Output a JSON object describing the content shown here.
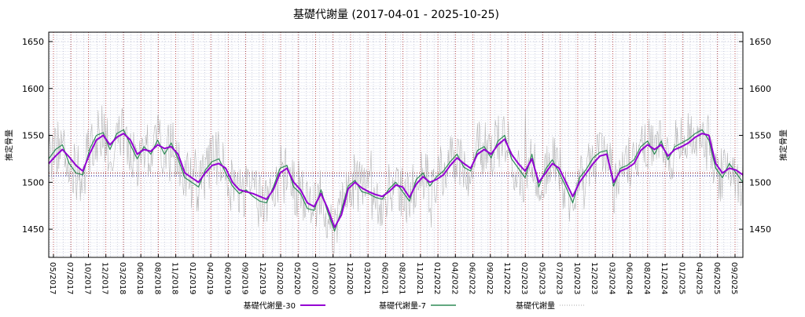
{
  "chart_data": {
    "type": "line",
    "title": "基礎代謝量 (2017-04-01 - 2025-10-25)",
    "ylabel_left": "推定骨量",
    "ylabel_right": "推定骨量",
    "xlabel": "",
    "ylim": [
      1420,
      1660
    ],
    "yticks": [
      1450,
      1500,
      1550,
      1600,
      1650
    ],
    "x_range": [
      "2017-04-01",
      "2025-10-25"
    ],
    "reference_lines": [
      1510,
      1507
    ],
    "xtick_labels": [
      "05/2017",
      "07/2017",
      "10/2017",
      "12/2017",
      "03/2018",
      "06/2018",
      "08/2018",
      "11/2018",
      "01/2019",
      "04/2019",
      "06/2019",
      "09/2019",
      "12/2019",
      "02/2020",
      "05/2020",
      "07/2020",
      "10/2020",
      "12/2020",
      "03/2021",
      "06/2021",
      "08/2021",
      "11/2021",
      "01/2022",
      "04/2022",
      "06/2022",
      "09/2022",
      "11/2022",
      "02/2023",
      "05/2023",
      "07/2023",
      "10/2023",
      "12/2023",
      "03/2024",
      "06/2024",
      "08/2024",
      "11/2024",
      "01/2025",
      "04/2025",
      "06/2025",
      "09/2025"
    ],
    "series": [
      {
        "name": "基礎代謝量-30",
        "color": "#9400d3",
        "style": "thick",
        "values": [
          1520,
          1528,
          1535,
          1527,
          1518,
          1512,
          1530,
          1545,
          1550,
          1540,
          1548,
          1552,
          1545,
          1530,
          1535,
          1533,
          1540,
          1536,
          1538,
          1530,
          1510,
          1505,
          1500,
          1510,
          1518,
          1520,
          1515,
          1500,
          1492,
          1490,
          1488,
          1485,
          1482,
          1492,
          1510,
          1515,
          1500,
          1492,
          1478,
          1474,
          1488,
          1472,
          1452,
          1465,
          1493,
          1500,
          1494,
          1490,
          1487,
          1485,
          1490,
          1497,
          1495,
          1484,
          1498,
          1506,
          1500,
          1503,
          1508,
          1518,
          1526,
          1520,
          1515,
          1530,
          1535,
          1530,
          1540,
          1546,
          1530,
          1520,
          1512,
          1525,
          1500,
          1510,
          1520,
          1515,
          1500,
          1485,
          1500,
          1510,
          1520,
          1528,
          1530,
          1500,
          1512,
          1515,
          1520,
          1534,
          1540,
          1535,
          1540,
          1528,
          1535,
          1538,
          1542,
          1548,
          1552,
          1550,
          1520,
          1510,
          1515,
          1513,
          1508
        ]
      },
      {
        "name": "基礎代謝量-7",
        "color": "#2e8b57",
        "style": "medium",
        "values": [
          1525,
          1535,
          1540,
          1520,
          1510,
          1508,
          1535,
          1550,
          1553,
          1535,
          1552,
          1556,
          1540,
          1525,
          1538,
          1530,
          1545,
          1530,
          1542,
          1525,
          1505,
          1500,
          1495,
          1513,
          1522,
          1525,
          1510,
          1496,
          1488,
          1492,
          1485,
          1480,
          1478,
          1495,
          1515,
          1518,
          1495,
          1488,
          1472,
          1470,
          1492,
          1468,
          1448,
          1470,
          1496,
          1502,
          1490,
          1488,
          1484,
          1482,
          1493,
          1500,
          1490,
          1480,
          1503,
          1510,
          1496,
          1506,
          1512,
          1522,
          1530,
          1516,
          1512,
          1534,
          1538,
          1526,
          1544,
          1550,
          1525,
          1515,
          1505,
          1530,
          1495,
          1514,
          1524,
          1510,
          1495,
          1478,
          1505,
          1514,
          1526,
          1532,
          1534,
          1496,
          1515,
          1518,
          1524,
          1538,
          1544,
          1530,
          1544,
          1524,
          1538,
          1542,
          1546,
          1552,
          1556,
          1545,
          1515,
          1505,
          1520,
          1510,
          1500
        ]
      },
      {
        "name": "基礎代謝量",
        "color": "#a9a9a9",
        "style": "thin",
        "values": []
      }
    ],
    "legend": {
      "position": "bottom-center",
      "entries": [
        "基礎代謝量-30",
        "基礎代謝量-7",
        "基礎代謝量"
      ]
    }
  }
}
